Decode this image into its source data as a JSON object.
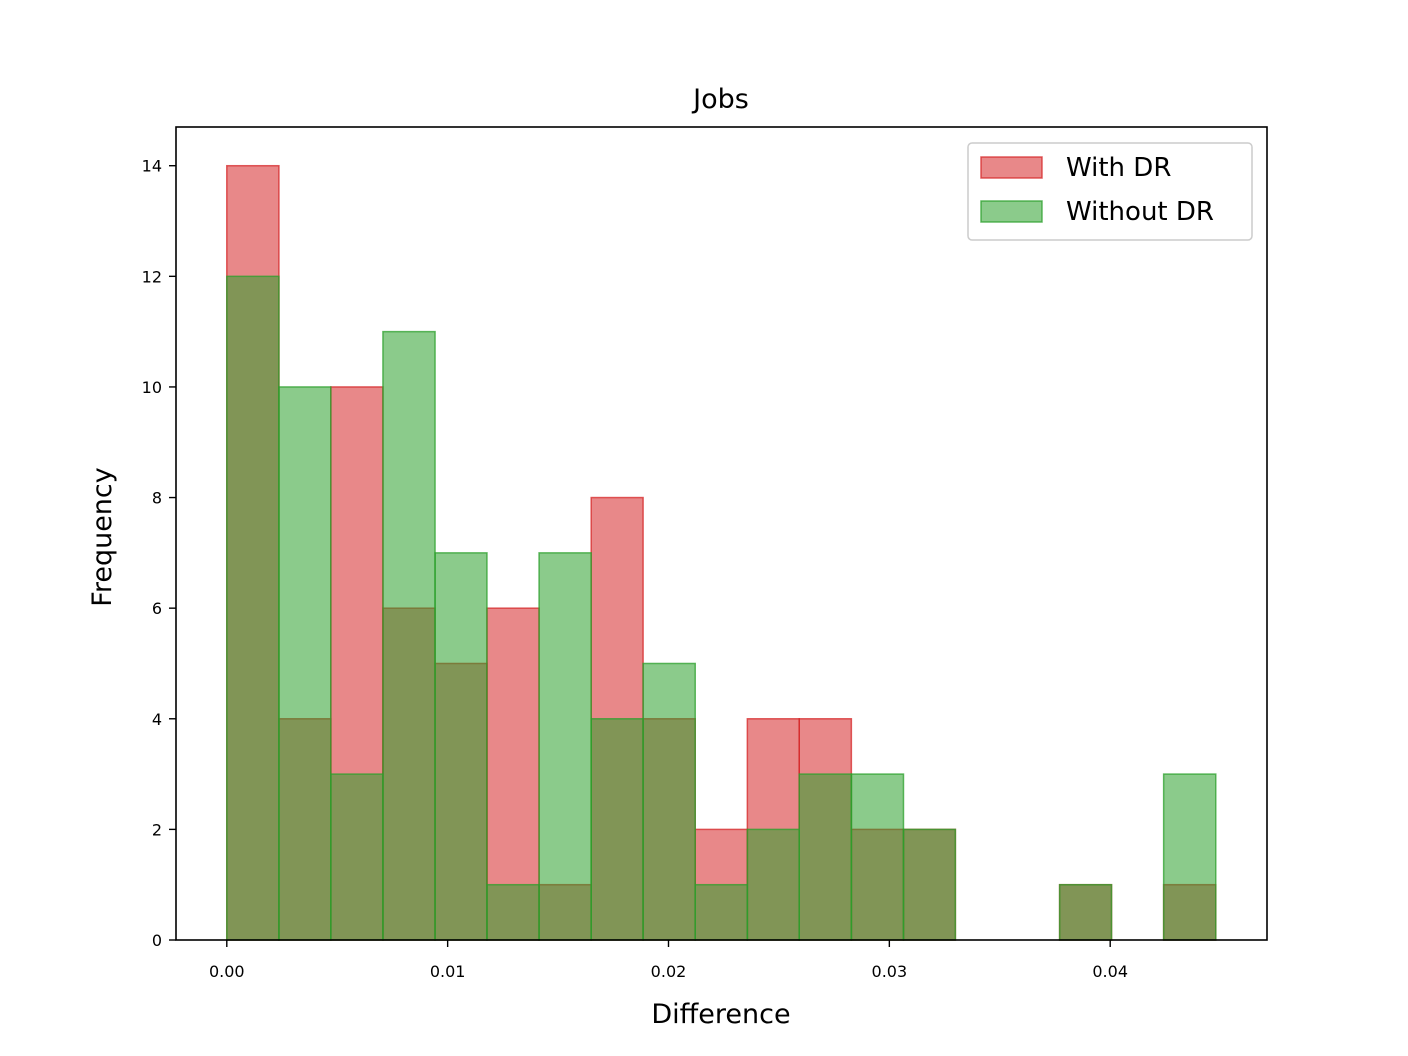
{
  "chart_data": {
    "type": "bar",
    "title": "Jobs",
    "xlabel": "Difference",
    "ylabel": "Frequency",
    "xlim": [
      -0.0023,
      0.0471
    ],
    "ylim": [
      0,
      14.7
    ],
    "x_ticks": [
      0.0,
      0.01,
      0.02,
      0.03,
      0.04
    ],
    "x_tick_labels": [
      "0.00",
      "0.01",
      "0.02",
      "0.03",
      "0.04"
    ],
    "y_ticks": [
      0,
      2,
      4,
      6,
      8,
      10,
      12,
      14
    ],
    "y_tick_labels": [
      "0",
      "2",
      "4",
      "6",
      "8",
      "10",
      "12",
      "14"
    ],
    "bin_edges": [
      0.0,
      0.00236,
      0.00471,
      0.00707,
      0.00943,
      0.01178,
      0.01414,
      0.0165,
      0.01885,
      0.02121,
      0.02357,
      0.02592,
      0.02828,
      0.03064,
      0.03299,
      0.03535,
      0.03771,
      0.04006,
      0.04242,
      0.04478
    ],
    "grid": false,
    "legend_position": "top-right",
    "series": [
      {
        "name": "With DR",
        "color": "#d62728",
        "fill": "#d98585",
        "values": [
          14,
          4,
          10,
          6,
          5,
          6,
          1,
          8,
          4,
          2,
          4,
          4,
          2,
          2,
          0,
          0,
          1,
          0,
          1
        ]
      },
      {
        "name": "Without DR",
        "color": "#2ca02c",
        "fill": "#80c07f",
        "values": [
          12,
          10,
          3,
          11,
          7,
          1,
          7,
          4,
          5,
          1,
          2,
          3,
          3,
          2,
          0,
          0,
          1,
          0,
          3
        ]
      }
    ]
  }
}
